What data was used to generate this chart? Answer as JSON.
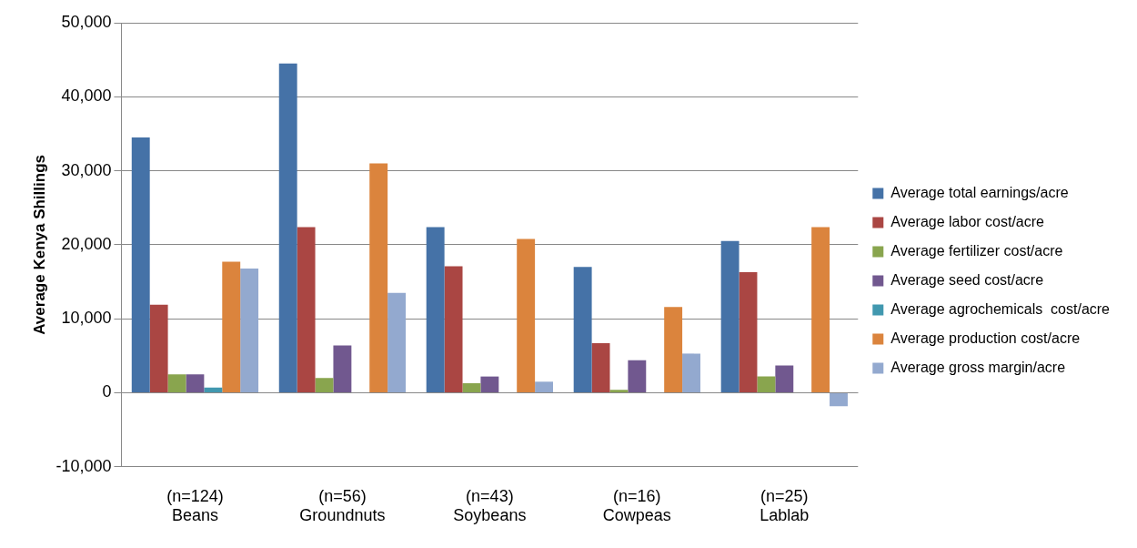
{
  "chart_data": {
    "type": "bar",
    "ylabel": "Average Kenya Shillings",
    "categories": [
      "(n=124)\nBeans",
      "(n=56)\nGroundnuts",
      "(n=43)\nSoybeans",
      "(n=16)\nCowpeas",
      "(n=25)\nLablab"
    ],
    "series": [
      {
        "name": "Average total earnings/acre",
        "color": "#4572a7",
        "values": [
          34500,
          44500,
          22400,
          17000,
          20500
        ]
      },
      {
        "name": "Average labor cost/acre",
        "color": "#aa4643",
        "values": [
          11900,
          22400,
          17100,
          6700,
          16300
        ]
      },
      {
        "name": "Average fertilizer cost/acre",
        "color": "#89a54e",
        "values": [
          2500,
          2000,
          1300,
          400,
          2200
        ]
      },
      {
        "name": "Average seed cost/acre",
        "color": "#71588f",
        "values": [
          2500,
          6400,
          2200,
          4400,
          3700
        ]
      },
      {
        "name": "Average agrochemicals  cost/acre",
        "color": "#4198af",
        "values": [
          700,
          null,
          null,
          null,
          null
        ]
      },
      {
        "name": "Average production cost/acre",
        "color": "#db843d",
        "values": [
          17700,
          31000,
          20800,
          11600,
          22400
        ]
      },
      {
        "name": "Average gross margin/acre",
        "color": "#93a9cf",
        "values": [
          16800,
          13500,
          1500,
          5300,
          -1800
        ]
      }
    ],
    "ylim": [
      -10000,
      50000
    ],
    "yticks": [
      {
        "value": -10000,
        "label": "-10,000"
      },
      0,
      {
        "value": 10000,
        "label": "10,000"
      },
      {
        "value": 20000,
        "label": "20,000"
      },
      {
        "value": 30000,
        "label": "30,000"
      },
      {
        "value": 40000,
        "label": "40,000"
      },
      {
        "value": 50000,
        "label": "50,000"
      }
    ],
    "grid": "y",
    "legend": "right"
  }
}
